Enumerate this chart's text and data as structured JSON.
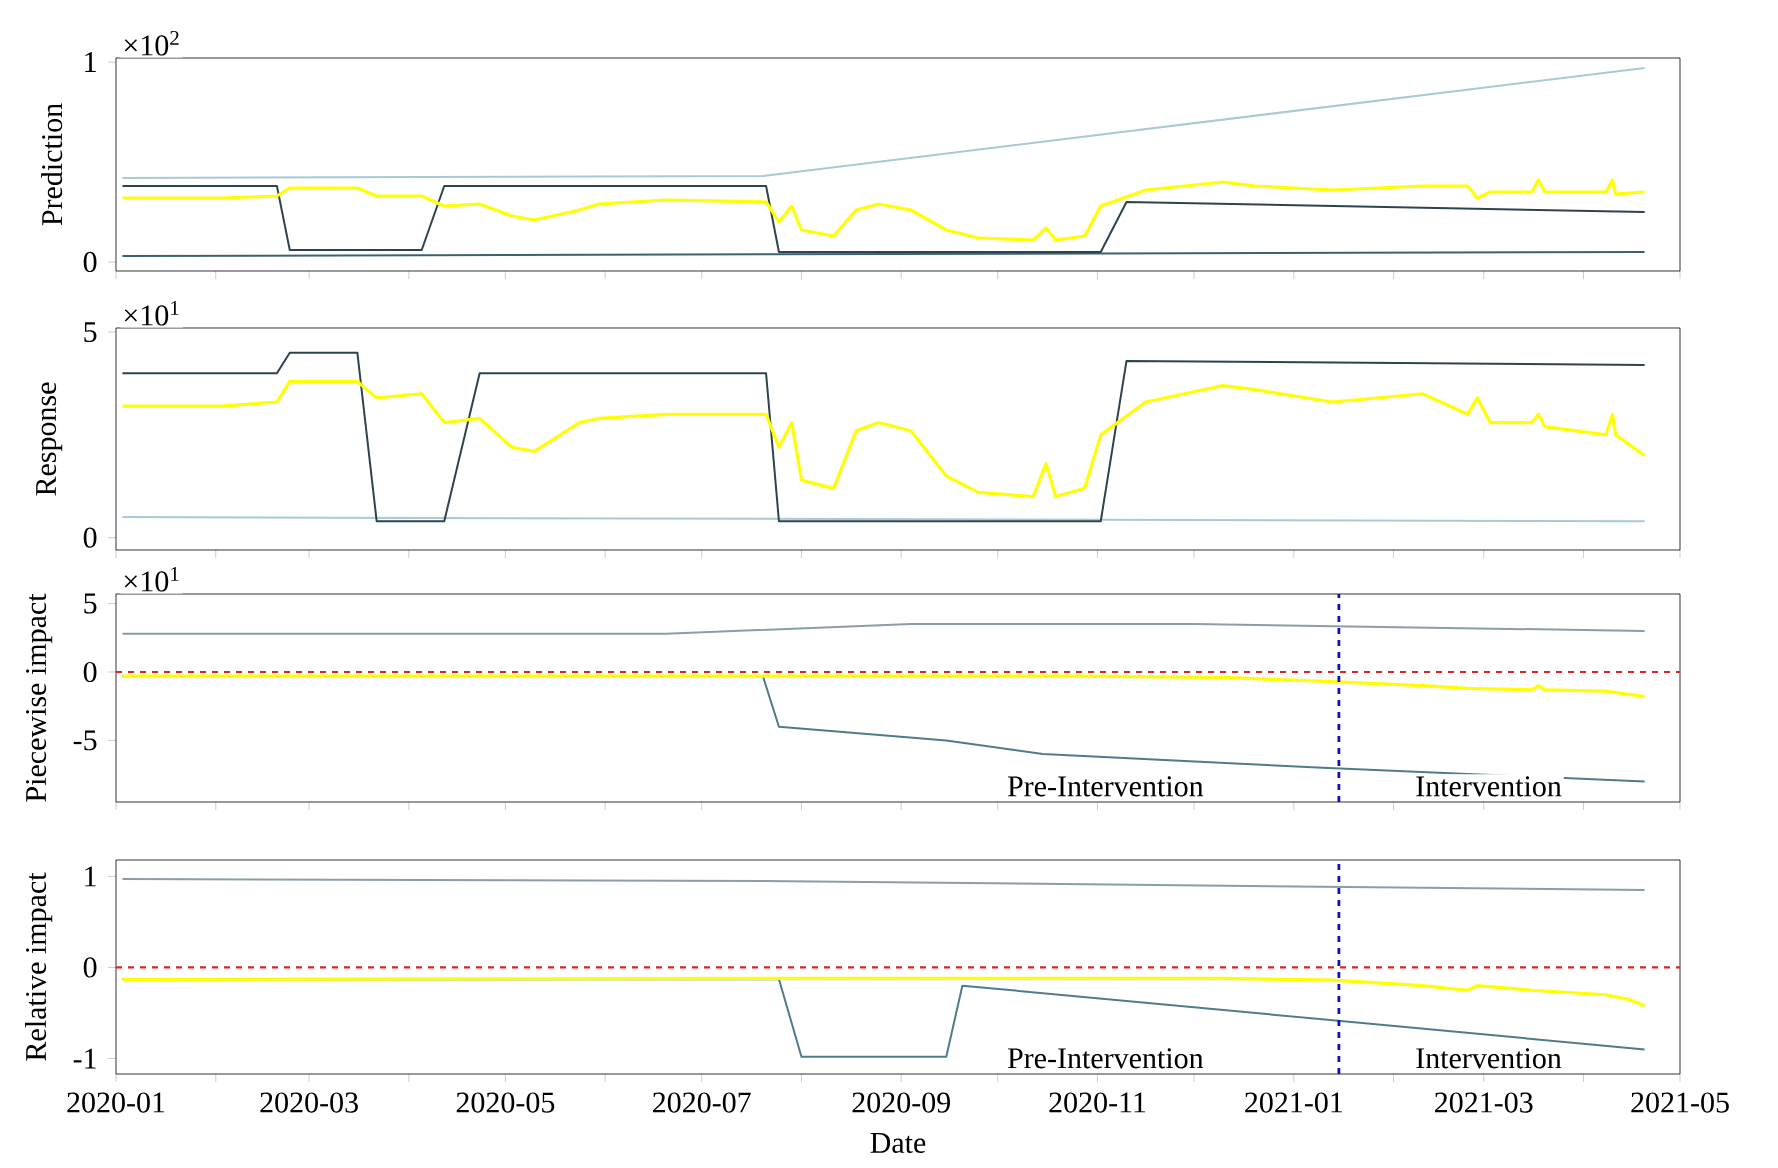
{
  "chart_data": [
    {
      "type": "line",
      "ylabel": "Prediction",
      "ylim": [
        -0.045,
        1.02
      ],
      "yticks": [
        0,
        1
      ],
      "xlim": [
        "2020-01-01",
        "2021-05-01"
      ],
      "xticks": [
        {
          "value": "2020-01-01",
          "label": null
        },
        {
          "value": "2020-02-01",
          "label": null
        },
        {
          "value": "2020-03-01",
          "label": null
        },
        {
          "value": "2020-04-01",
          "label": null
        },
        {
          "value": "2020-05-01",
          "label": null
        },
        {
          "value": "2020-06-01",
          "label": null
        },
        {
          "value": "2020-07-01",
          "label": null
        },
        {
          "value": "2020-08-01",
          "label": null
        },
        {
          "value": "2020-09-01",
          "label": null
        },
        {
          "value": "2020-10-01",
          "label": null
        },
        {
          "value": "2020-11-01",
          "label": null
        },
        {
          "value": "2020-12-01",
          "label": null
        },
        {
          "value": "2021-01-01",
          "label": null
        },
        {
          "value": "2021-02-01",
          "label": null
        },
        {
          "value": "2021-03-01",
          "label": null
        },
        {
          "value": "2021-04-01",
          "label": null
        },
        {
          "value": "2021-05-01",
          "label": null
        }
      ],
      "tick_labels": "y",
      "annotations": [
        "×10$^{2}$"
      ],
      "series": [
        {
          "color": "#a9c9d4",
          "x": [
            "2020-01-03",
            "2020-07-20",
            "2021-04-20"
          ],
          "values": [
            0.42,
            0.43,
            0.97
          ]
        },
        {
          "color": "#3d6170",
          "x": [
            "2020-01-03",
            "2021-04-20"
          ],
          "values": [
            0.03,
            0.05
          ]
        },
        {
          "color": "#2c4450",
          "x": [
            "2020-01-03",
            "2020-02-20",
            "2020-02-24",
            "2020-04-05",
            "2020-04-12",
            "2020-07-21",
            "2020-07-25",
            "2020-11-02",
            "2020-11-10",
            "2021-04-20"
          ],
          "values": [
            0.38,
            0.38,
            0.06,
            0.06,
            0.38,
            0.38,
            0.05,
            0.05,
            0.3,
            0.25
          ]
        },
        {
          "color": "#ffff00",
          "x": [
            "2020-01-03",
            "2020-02-03",
            "2020-02-20",
            "2020-02-24",
            "2020-03-16",
            "2020-03-22",
            "2020-04-05",
            "2020-04-12",
            "2020-04-23",
            "2020-05-03",
            "2020-05-10",
            "2020-05-24",
            "2020-05-30",
            "2020-06-20",
            "2020-07-21",
            "2020-07-25",
            "2020-07-29",
            "2020-08-01",
            "2020-08-11",
            "2020-08-18",
            "2020-08-25",
            "2020-09-04",
            "2020-09-15",
            "2020-09-25",
            "2020-10-12",
            "2020-10-16",
            "2020-10-19",
            "2020-10-28",
            "2020-11-02",
            "2020-11-16",
            "2020-12-10",
            "2020-12-20",
            "2021-01-13",
            "2021-02-10",
            "2021-02-24",
            "2021-02-27",
            "2021-03-03",
            "2021-03-16",
            "2021-03-18",
            "2021-03-20",
            "2021-04-08",
            "2021-04-10",
            "2021-04-11",
            "2021-04-20"
          ],
          "values": [
            0.32,
            0.32,
            0.33,
            0.37,
            0.37,
            0.33,
            0.33,
            0.28,
            0.29,
            0.23,
            0.21,
            0.26,
            0.29,
            0.31,
            0.3,
            0.2,
            0.28,
            0.16,
            0.13,
            0.26,
            0.29,
            0.26,
            0.16,
            0.12,
            0.11,
            0.17,
            0.11,
            0.13,
            0.28,
            0.36,
            0.4,
            0.38,
            0.36,
            0.38,
            0.38,
            0.32,
            0.35,
            0.35,
            0.41,
            0.35,
            0.35,
            0.41,
            0.34,
            0.35
          ]
        }
      ]
    },
    {
      "type": "line",
      "ylabel": "Response",
      "ylim": [
        -0.3,
        5.1
      ],
      "yticks": [
        0,
        5
      ],
      "xlim": [
        "2020-01-01",
        "2021-05-01"
      ],
      "xticks": [
        {
          "value": "2020-01-01",
          "label": null
        },
        {
          "value": "2020-02-01",
          "label": null
        },
        {
          "value": "2020-03-01",
          "label": null
        },
        {
          "value": "2020-04-01",
          "label": null
        },
        {
          "value": "2020-05-01",
          "label": null
        },
        {
          "value": "2020-06-01",
          "label": null
        },
        {
          "value": "2020-07-01",
          "label": null
        },
        {
          "value": "2020-08-01",
          "label": null
        },
        {
          "value": "2020-09-01",
          "label": null
        },
        {
          "value": "2020-10-01",
          "label": null
        },
        {
          "value": "2020-11-01",
          "label": null
        },
        {
          "value": "2020-12-01",
          "label": null
        },
        {
          "value": "2021-01-01",
          "label": null
        },
        {
          "value": "2021-02-01",
          "label": null
        },
        {
          "value": "2021-03-01",
          "label": null
        },
        {
          "value": "2021-04-01",
          "label": null
        },
        {
          "value": "2021-05-01",
          "label": null
        }
      ],
      "tick_labels": "y",
      "annotations": [
        "×10$^{1}$"
      ],
      "series": [
        {
          "color": "#a9c9d4",
          "x": [
            "2020-01-03",
            "2021-04-20"
          ],
          "values": [
            0.5,
            0.4
          ]
        },
        {
          "color": "#2c4450",
          "x": [
            "2020-01-03",
            "2020-02-20",
            "2020-02-24",
            "2020-03-16",
            "2020-03-22",
            "2020-04-12",
            "2020-04-23",
            "2020-07-21",
            "2020-07-25",
            "2020-11-02",
            "2020-11-10",
            "2021-04-20"
          ],
          "values": [
            4.0,
            4.0,
            4.5,
            4.5,
            0.4,
            0.4,
            4.0,
            4.0,
            0.4,
            0.4,
            4.3,
            4.2
          ]
        },
        {
          "color": "#ffff00",
          "x": [
            "2020-01-03",
            "2020-02-03",
            "2020-02-20",
            "2020-02-24",
            "2020-03-16",
            "2020-03-22",
            "2020-04-05",
            "2020-04-12",
            "2020-04-23",
            "2020-05-03",
            "2020-05-10",
            "2020-05-24",
            "2020-05-30",
            "2020-06-20",
            "2020-07-21",
            "2020-07-25",
            "2020-07-29",
            "2020-08-01",
            "2020-08-11",
            "2020-08-18",
            "2020-08-25",
            "2020-09-04",
            "2020-09-15",
            "2020-09-25",
            "2020-10-12",
            "2020-10-16",
            "2020-10-19",
            "2020-10-28",
            "2020-11-02",
            "2020-11-16",
            "2020-12-10",
            "2020-12-20",
            "2021-01-13",
            "2021-02-10",
            "2021-02-24",
            "2021-02-27",
            "2021-03-03",
            "2021-03-16",
            "2021-03-18",
            "2021-03-20",
            "2021-04-08",
            "2021-04-10",
            "2021-04-11",
            "2021-04-20"
          ],
          "values": [
            3.2,
            3.2,
            3.3,
            3.8,
            3.8,
            3.4,
            3.5,
            2.8,
            2.9,
            2.2,
            2.1,
            2.8,
            2.9,
            3.0,
            3.0,
            2.2,
            2.8,
            1.4,
            1.2,
            2.6,
            2.8,
            2.6,
            1.5,
            1.1,
            1.0,
            1.8,
            1.0,
            1.2,
            2.5,
            3.3,
            3.7,
            3.6,
            3.3,
            3.5,
            3.0,
            3.4,
            2.8,
            2.8,
            3.0,
            2.7,
            2.5,
            3.0,
            2.5,
            2.0
          ]
        }
      ]
    },
    {
      "type": "line",
      "ylabel": "Piecewise impact",
      "ylim": [
        -9.5,
        5.7
      ],
      "yticks": [
        -5,
        0,
        5
      ],
      "xlim": [
        "2020-01-01",
        "2021-05-01"
      ],
      "xticks": [
        {
          "value": "2020-01-01",
          "label": null
        },
        {
          "value": "2020-02-01",
          "label": null
        },
        {
          "value": "2020-03-01",
          "label": null
        },
        {
          "value": "2020-04-01",
          "label": null
        },
        {
          "value": "2020-05-01",
          "label": null
        },
        {
          "value": "2020-06-01",
          "label": null
        },
        {
          "value": "2020-07-01",
          "label": null
        },
        {
          "value": "2020-08-01",
          "label": null
        },
        {
          "value": "2020-09-01",
          "label": null
        },
        {
          "value": "2020-10-01",
          "label": null
        },
        {
          "value": "2020-11-01",
          "label": null
        },
        {
          "value": "2020-12-01",
          "label": null
        },
        {
          "value": "2021-01-01",
          "label": null
        },
        {
          "value": "2021-02-01",
          "label": null
        },
        {
          "value": "2021-03-01",
          "label": null
        },
        {
          "value": "2021-04-01",
          "label": null
        },
        {
          "value": "2021-05-01",
          "label": null
        }
      ],
      "tick_labels": "y",
      "annotations": [
        "×10$^{1}$",
        "Pre-Intervention",
        "Intervention"
      ],
      "ref_lines": [
        {
          "axis": "y",
          "value": 0,
          "color": "#d62728",
          "line_style": "dashed"
        },
        {
          "axis": "x",
          "value": "2021-01-15",
          "color": "#1010c0",
          "line_style": "dashed"
        }
      ],
      "series": [
        {
          "color": "#8a9ea6",
          "x": [
            "2020-01-03",
            "2020-06-20",
            "2020-09-04",
            "2020-12-01",
            "2021-04-20"
          ],
          "values": [
            2.8,
            2.8,
            3.5,
            3.5,
            3.0
          ]
        },
        {
          "color": "#4f7b8c",
          "x": [
            "2020-01-03",
            "2020-07-20",
            "2020-07-25",
            "2020-09-15",
            "2020-10-15",
            "2021-01-10",
            "2021-04-20"
          ],
          "values": [
            -0.3,
            -0.3,
            -4.0,
            -5.0,
            -6.0,
            -7.0,
            -8.0
          ]
        },
        {
          "color": "#ffff00",
          "x": [
            "2020-01-03",
            "2020-07-21",
            "2020-10-28",
            "2020-12-10",
            "2021-01-13",
            "2021-02-10",
            "2021-02-24",
            "2021-03-16",
            "2021-03-18",
            "2021-03-20",
            "2021-04-08",
            "2021-04-20"
          ],
          "values": [
            -0.3,
            -0.3,
            -0.3,
            -0.4,
            -0.7,
            -1.0,
            -1.2,
            -1.3,
            -1.0,
            -1.3,
            -1.4,
            -1.8
          ]
        }
      ]
    },
    {
      "type": "line",
      "ylabel": "Relative impact",
      "xlabel": "Date",
      "ylim": [
        -1.17,
        1.18
      ],
      "yticks": [
        -1,
        0,
        1
      ],
      "xlim": [
        "2020-01-01",
        "2021-05-01"
      ],
      "xticks": [
        {
          "value": "2020-01-01",
          "label": "2020-01"
        },
        {
          "value": "2020-02-01",
          "label": null
        },
        {
          "value": "2020-03-01",
          "label": "2020-03"
        },
        {
          "value": "2020-04-01",
          "label": null
        },
        {
          "value": "2020-05-01",
          "label": "2020-05"
        },
        {
          "value": "2020-06-01",
          "label": null
        },
        {
          "value": "2020-07-01",
          "label": "2020-07"
        },
        {
          "value": "2020-08-01",
          "label": null
        },
        {
          "value": "2020-09-01",
          "label": "2020-09"
        },
        {
          "value": "2020-10-01",
          "label": null
        },
        {
          "value": "2020-11-01",
          "label": "2020-11"
        },
        {
          "value": "2020-12-01",
          "label": null
        },
        {
          "value": "2021-01-01",
          "label": "2021-01"
        },
        {
          "value": "2021-02-01",
          "label": null
        },
        {
          "value": "2021-03-01",
          "label": "2021-03"
        },
        {
          "value": "2021-04-01",
          "label": null
        },
        {
          "value": "2021-05-01",
          "label": "2021-05"
        }
      ],
      "annotations": [
        "Pre-Intervention",
        "Intervention"
      ],
      "ref_lines": [
        {
          "axis": "y",
          "value": 0,
          "color": "#d62728",
          "line_style": "dashed"
        },
        {
          "axis": "x",
          "value": "2021-01-15",
          "color": "#1010c0",
          "line_style": "dashed"
        }
      ],
      "series": [
        {
          "color": "#8a9ea6",
          "x": [
            "2020-01-03",
            "2020-07-20",
            "2021-04-20"
          ],
          "values": [
            0.97,
            0.95,
            0.85
          ]
        },
        {
          "color": "#4f7b8c",
          "x": [
            "2020-01-03",
            "2020-07-25",
            "2020-08-01",
            "2020-09-15",
            "2020-09-20",
            "2021-04-20"
          ],
          "values": [
            -0.13,
            -0.13,
            -0.98,
            -0.98,
            -0.2,
            -0.9
          ]
        },
        {
          "color": "#ffff00",
          "x": [
            "2020-01-03",
            "2020-07-21",
            "2020-12-10",
            "2021-01-13",
            "2021-02-10",
            "2021-02-24",
            "2021-02-27",
            "2021-03-16",
            "2021-04-08",
            "2021-04-15",
            "2021-04-20"
          ],
          "values": [
            -0.13,
            -0.12,
            -0.12,
            -0.14,
            -0.2,
            -0.25,
            -0.2,
            -0.25,
            -0.3,
            -0.35,
            -0.42
          ]
        }
      ]
    }
  ]
}
